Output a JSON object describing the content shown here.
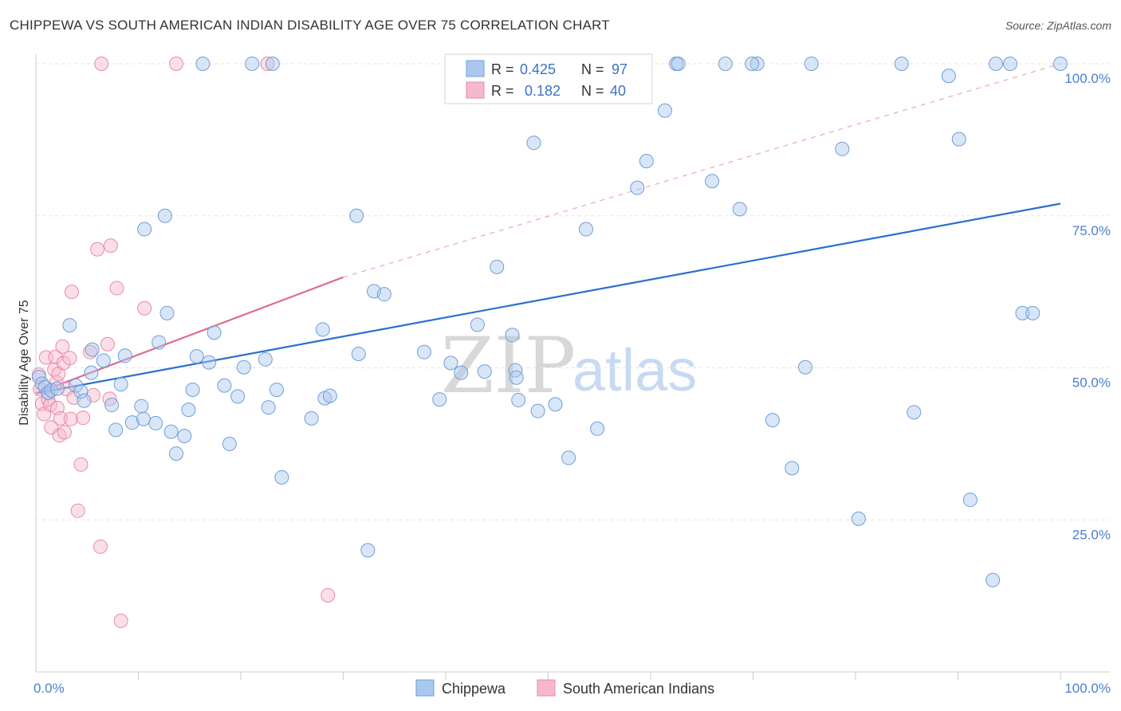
{
  "header": {
    "title": "CHIPPEWA VS SOUTH AMERICAN INDIAN DISABILITY AGE OVER 75 CORRELATION CHART",
    "source": "Source: ZipAtlas.com"
  },
  "watermark": {
    "zip": "ZIP",
    "atlas": "atlas"
  },
  "colors": {
    "blue_fill": "#aac8ee",
    "blue_stroke": "#6f9fd8",
    "blue_line": "#2b6fce",
    "pink_fill": "#f6b8cb",
    "pink_stroke": "#e98aa8",
    "pink_line": "#e06b94",
    "grid": "#e3e3e3",
    "axis_label": "#4a7fcf"
  },
  "legend": {
    "rows": [
      {
        "r_label": "R =",
        "r_value": "0.425",
        "n_label": "N =",
        "n_value": "97"
      },
      {
        "r_label": "R =",
        "r_value": "0.182",
        "n_label": "N =",
        "n_value": "40"
      }
    ]
  },
  "bottom_legend": {
    "series1": "Chippewa",
    "series2": "South American Indians"
  },
  "chart_data": {
    "type": "scatter",
    "title": "CHIPPEWA VS SOUTH AMERICAN INDIAN DISABILITY AGE OVER 75 CORRELATION CHART",
    "xlabel": "",
    "ylabel": "Disability Age Over 75",
    "xlim": [
      0,
      100
    ],
    "ylim": [
      0,
      100
    ],
    "x_tick_labels": [
      "0.0%",
      "100.0%"
    ],
    "y_tick_labels": [
      "25.0%",
      "50.0%",
      "75.0%",
      "100.0%"
    ],
    "y_ticks": [
      25,
      50,
      75,
      100
    ],
    "series": [
      {
        "name": "Chippewa",
        "color": "#6f9fd8",
        "trend": {
          "x": [
            0,
            100
          ],
          "y": [
            45.8,
            77.0
          ]
        },
        "points": [
          [
            0.3,
            48.5
          ],
          [
            0.6,
            47.4
          ],
          [
            0.9,
            46.8
          ],
          [
            1.2,
            45.9
          ],
          [
            1.5,
            46.3
          ],
          [
            2.1,
            46.6
          ],
          [
            3.3,
            57.0
          ],
          [
            3.9,
            47.1
          ],
          [
            4.4,
            46.1
          ],
          [
            4.7,
            44.6
          ],
          [
            5.4,
            49.2
          ],
          [
            5.5,
            53.0
          ],
          [
            6.6,
            51.2
          ],
          [
            7.4,
            43.9
          ],
          [
            7.8,
            39.8
          ],
          [
            8.3,
            47.3
          ],
          [
            8.7,
            52.0
          ],
          [
            9.4,
            41.0
          ],
          [
            10.3,
            43.7
          ],
          [
            10.5,
            41.6
          ],
          [
            10.6,
            72.8
          ],
          [
            11.7,
            40.9
          ],
          [
            12.0,
            54.2
          ],
          [
            12.6,
            75.0
          ],
          [
            12.8,
            59.0
          ],
          [
            13.2,
            39.5
          ],
          [
            13.7,
            35.9
          ],
          [
            14.5,
            38.8
          ],
          [
            14.9,
            43.1
          ],
          [
            15.3,
            46.4
          ],
          [
            15.7,
            51.9
          ],
          [
            16.3,
            100.0
          ],
          [
            16.9,
            50.9
          ],
          [
            17.4,
            55.8
          ],
          [
            18.4,
            47.1
          ],
          [
            18.9,
            37.5
          ],
          [
            19.7,
            45.3
          ],
          [
            20.3,
            50.1
          ],
          [
            21.1,
            100.0
          ],
          [
            22.4,
            51.4
          ],
          [
            22.7,
            43.5
          ],
          [
            23.1,
            100.0
          ],
          [
            23.5,
            46.4
          ],
          [
            24.0,
            32.0
          ],
          [
            26.9,
            41.7
          ],
          [
            28.0,
            56.3
          ],
          [
            28.2,
            45.0
          ],
          [
            28.7,
            45.4
          ],
          [
            31.3,
            75.0
          ],
          [
            31.5,
            52.3
          ],
          [
            32.4,
            20.0
          ],
          [
            33.0,
            62.6
          ],
          [
            34.0,
            62.1
          ],
          [
            37.9,
            52.6
          ],
          [
            39.4,
            44.8
          ],
          [
            40.5,
            50.8
          ],
          [
            41.5,
            49.2
          ],
          [
            43.1,
            57.1
          ],
          [
            43.8,
            49.4
          ],
          [
            45.0,
            66.6
          ],
          [
            46.5,
            55.4
          ],
          [
            46.8,
            49.6
          ],
          [
            46.9,
            48.4
          ],
          [
            47.1,
            44.7
          ],
          [
            48.6,
            87.0
          ],
          [
            49.0,
            42.9
          ],
          [
            50.7,
            44.0
          ],
          [
            52.0,
            35.2
          ],
          [
            53.7,
            72.8
          ],
          [
            54.8,
            40.0
          ],
          [
            58.7,
            79.6
          ],
          [
            59.6,
            84.0
          ],
          [
            61.4,
            92.3
          ],
          [
            62.5,
            100.0
          ],
          [
            66.0,
            80.7
          ],
          [
            67.3,
            100.0
          ],
          [
            68.7,
            76.1
          ],
          [
            70.4,
            100.0
          ],
          [
            71.9,
            41.4
          ],
          [
            73.8,
            33.5
          ],
          [
            75.1,
            50.1
          ],
          [
            78.7,
            86.0
          ],
          [
            80.3,
            25.2
          ],
          [
            84.5,
            100.0
          ],
          [
            85.7,
            42.7
          ],
          [
            89.1,
            98.0
          ],
          [
            90.1,
            87.6
          ],
          [
            91.2,
            28.3
          ],
          [
            93.4,
            15.1
          ],
          [
            93.7,
            100.0
          ],
          [
            95.1,
            100.0
          ],
          [
            96.3,
            59.0
          ],
          [
            97.3,
            59.0
          ],
          [
            62.7,
            100.0
          ],
          [
            75.7,
            100.0
          ],
          [
            69.9,
            100.0
          ],
          [
            100.0,
            100.0
          ]
        ]
      },
      {
        "name": "South American Indians",
        "color": "#e98aa8",
        "trend": {
          "x": [
            0,
            30
          ],
          "y": [
            45.8,
            64.9
          ],
          "extends_dashed_to": [
            100,
            100
          ]
        },
        "points": [
          [
            0.3,
            48.9
          ],
          [
            0.4,
            46.5
          ],
          [
            0.6,
            44.1
          ],
          [
            0.8,
            42.4
          ],
          [
            1.0,
            51.7
          ],
          [
            1.2,
            44.8
          ],
          [
            1.4,
            43.9
          ],
          [
            1.5,
            40.2
          ],
          [
            1.8,
            49.7
          ],
          [
            1.9,
            51.8
          ],
          [
            2.0,
            47.6
          ],
          [
            2.1,
            43.4
          ],
          [
            2.2,
            49.0
          ],
          [
            2.3,
            38.9
          ],
          [
            2.4,
            41.7
          ],
          [
            2.6,
            53.5
          ],
          [
            2.7,
            50.8
          ],
          [
            2.8,
            39.4
          ],
          [
            3.0,
            46.5
          ],
          [
            3.3,
            51.6
          ],
          [
            3.4,
            41.6
          ],
          [
            3.5,
            62.5
          ],
          [
            3.7,
            45.1
          ],
          [
            4.1,
            26.5
          ],
          [
            4.4,
            34.1
          ],
          [
            4.6,
            41.8
          ],
          [
            5.3,
            52.6
          ],
          [
            5.6,
            45.5
          ],
          [
            6.0,
            69.5
          ],
          [
            6.3,
            20.6
          ],
          [
            6.4,
            100.0
          ],
          [
            7.0,
            53.9
          ],
          [
            7.2,
            44.9
          ],
          [
            7.3,
            70.1
          ],
          [
            7.9,
            63.1
          ],
          [
            8.3,
            8.4
          ],
          [
            10.6,
            59.8
          ],
          [
            13.7,
            100.0
          ],
          [
            22.6,
            100.0
          ],
          [
            28.5,
            12.6
          ]
        ]
      }
    ]
  }
}
